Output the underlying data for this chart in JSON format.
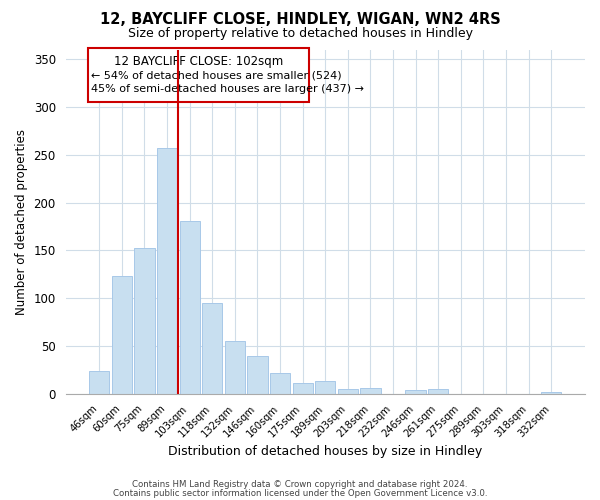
{
  "title": "12, BAYCLIFF CLOSE, HINDLEY, WIGAN, WN2 4RS",
  "subtitle": "Size of property relative to detached houses in Hindley",
  "xlabel": "Distribution of detached houses by size in Hindley",
  "ylabel": "Number of detached properties",
  "bar_color": "#c8dff0",
  "bar_edge_color": "#a8c8e8",
  "vline_color": "#cc0000",
  "vline_x": 3.5,
  "categories": [
    "46sqm",
    "60sqm",
    "75sqm",
    "89sqm",
    "103sqm",
    "118sqm",
    "132sqm",
    "146sqm",
    "160sqm",
    "175sqm",
    "189sqm",
    "203sqm",
    "218sqm",
    "232sqm",
    "246sqm",
    "261sqm",
    "275sqm",
    "289sqm",
    "303sqm",
    "318sqm",
    "332sqm"
  ],
  "values": [
    24,
    123,
    152,
    257,
    181,
    95,
    55,
    39,
    22,
    11,
    13,
    5,
    6,
    0,
    4,
    5,
    0,
    0,
    0,
    0,
    2
  ],
  "ylim": [
    0,
    360
  ],
  "yticks": [
    0,
    50,
    100,
    150,
    200,
    250,
    300,
    350
  ],
  "annotation_title": "12 BAYCLIFF CLOSE: 102sqm",
  "annotation_line1": "← 54% of detached houses are smaller (524)",
  "annotation_line2": "45% of semi-detached houses are larger (437) →",
  "footer1": "Contains HM Land Registry data © Crown copyright and database right 2024.",
  "footer2": "Contains public sector information licensed under the Open Government Licence v3.0.",
  "background_color": "#ffffff",
  "grid_color": "#d0dde8"
}
